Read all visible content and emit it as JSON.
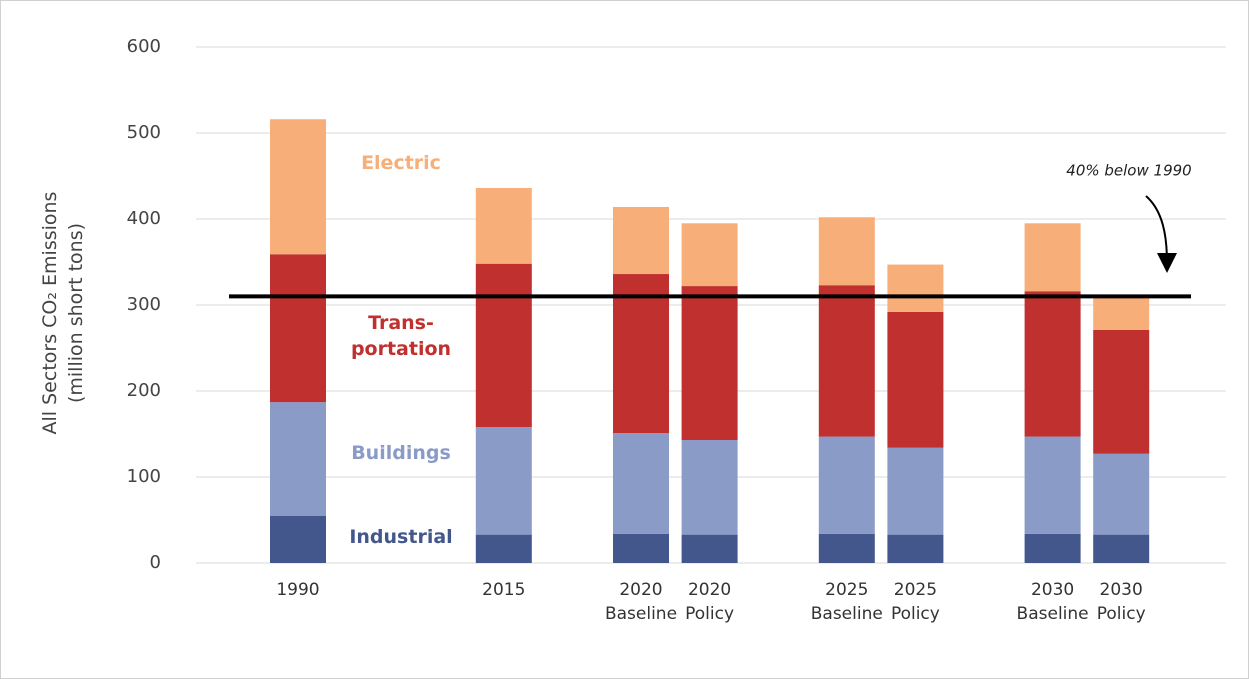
{
  "chart_data": {
    "type": "stacked_bar",
    "ylabel": [
      "All Sectors CO₂ Emissions",
      "(million short tons)"
    ],
    "categories": [
      "1990",
      null,
      null,
      "2015",
      null,
      "2020 Baseline",
      "2020 Policy",
      null,
      "2025 Baseline",
      "2025 Policy",
      null,
      "2030 Baseline",
      "2030 Policy"
    ],
    "series": [
      {
        "name": "Industrial",
        "color": "#44578c",
        "values": [
          55,
          null,
          null,
          33,
          null,
          34,
          33,
          null,
          34,
          33,
          null,
          34,
          33
        ]
      },
      {
        "name": "Buildings",
        "color": "#8b9bc7",
        "values": [
          132,
          null,
          null,
          125,
          null,
          117,
          110,
          null,
          113,
          101,
          null,
          113,
          94
        ]
      },
      {
        "name": "Trans- portation",
        "color": "#c0302e",
        "values": [
          172,
          null,
          null,
          190,
          null,
          185,
          179,
          null,
          176,
          158,
          null,
          169,
          144
        ]
      },
      {
        "name": "Electric",
        "color": "#f8ae78",
        "values": [
          157,
          null,
          null,
          88,
          null,
          78,
          73,
          null,
          79,
          55,
          null,
          79,
          38
        ]
      }
    ],
    "reference_line": {
      "value": 310,
      "label": "40% below 1990"
    },
    "ylim": [
      0,
      600
    ],
    "yticks": [
      0,
      100,
      200,
      300,
      400,
      500,
      600
    ],
    "grid": true
  }
}
